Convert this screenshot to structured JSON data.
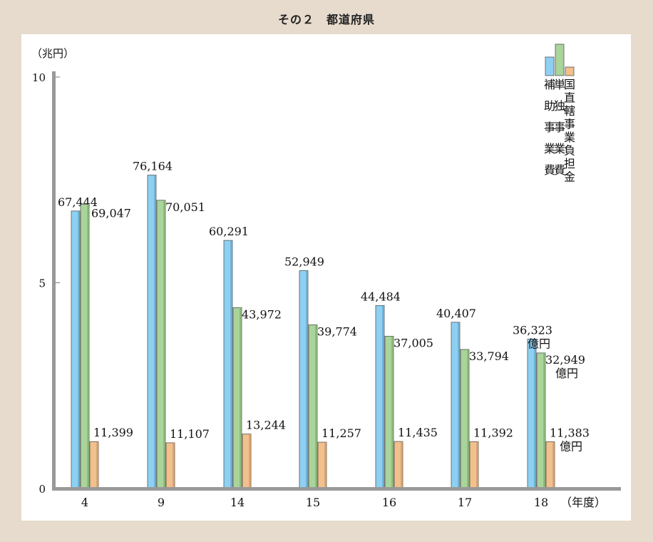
{
  "title": "その２　都道府県",
  "chart_data": {
    "type": "bar",
    "title": "その２　都道府県",
    "yunit": "（兆円）",
    "xunit": "（年度）",
    "categories": [
      "4",
      "9",
      "14",
      "15",
      "16",
      "17",
      "18"
    ],
    "yticks": [
      0,
      5,
      10
    ],
    "ylim": [
      0,
      10
    ],
    "grid": false,
    "legend_position": "top-right",
    "value_unit": "億円",
    "series": [
      {
        "name": "補助事業費",
        "color": "#8ed0f2",
        "values": [
          67444,
          76164,
          60291,
          52949,
          44484,
          40407,
          36323
        ],
        "labels": [
          "67,444",
          "76,164",
          "60,291",
          "52,949",
          "44,484",
          "40,407",
          "36,323"
        ]
      },
      {
        "name": "単独事業費",
        "color": "#a9d49a",
        "values": [
          69047,
          70051,
          43972,
          39774,
          37005,
          33794,
          32949
        ],
        "labels": [
          "69,047",
          "70,051",
          "43,972",
          "39,774",
          "37,005",
          "33,794",
          "32,949"
        ]
      },
      {
        "name": "国直轄事業負担金",
        "color": "#f2c08c",
        "values": [
          11399,
          11107,
          13244,
          11257,
          11435,
          11392,
          11383
        ],
        "labels": [
          "11,399",
          "11,107",
          "13,244",
          "11,257",
          "11,435",
          "11,392",
          "11,383"
        ]
      }
    ]
  }
}
